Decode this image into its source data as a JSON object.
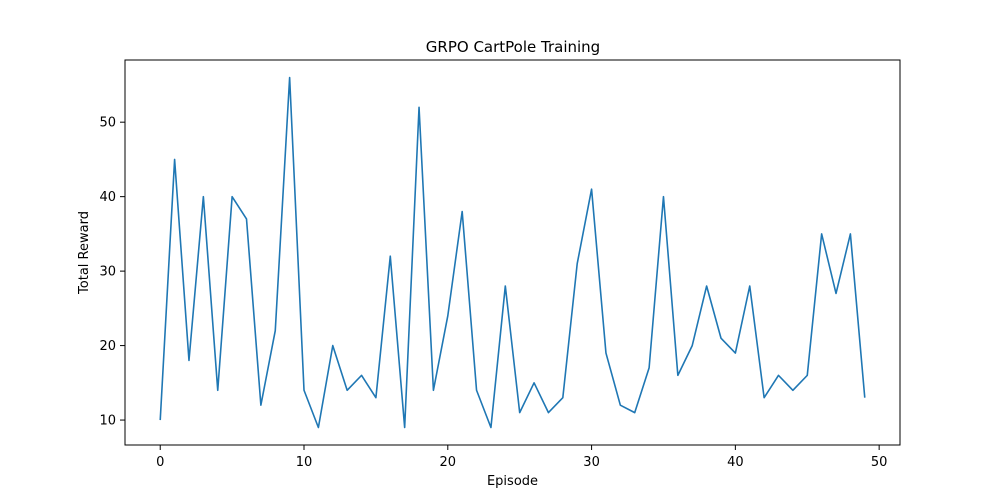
{
  "chart_data": {
    "type": "line",
    "title": "GRPO CartPole Training",
    "xlabel": "Episode",
    "ylabel": "Total Reward",
    "xlim": [
      -2.45,
      51.45
    ],
    "ylim": [
      6.65,
      58.35
    ],
    "xticks": [
      0,
      10,
      20,
      30,
      40,
      50
    ],
    "yticks": [
      10,
      20,
      30,
      40,
      50
    ],
    "grid": false,
    "line_color": "#1f77b4",
    "x": [
      0,
      1,
      2,
      3,
      4,
      5,
      6,
      7,
      8,
      9,
      10,
      11,
      12,
      13,
      14,
      15,
      16,
      17,
      18,
      19,
      20,
      21,
      22,
      23,
      24,
      25,
      26,
      27,
      28,
      29,
      30,
      31,
      32,
      33,
      34,
      35,
      36,
      37,
      38,
      39,
      40,
      41,
      42,
      43,
      44,
      45,
      46,
      47,
      48,
      49
    ],
    "values": [
      10,
      45,
      18,
      40,
      14,
      40,
      37,
      12,
      22,
      56,
      14,
      9,
      20,
      14,
      16,
      13,
      32,
      9,
      52,
      14,
      24,
      38,
      14,
      9,
      28,
      11,
      15,
      11,
      13,
      31,
      41,
      19,
      12,
      11,
      17,
      40,
      16,
      20,
      28,
      21,
      19,
      28,
      13,
      16,
      14,
      16,
      35,
      27,
      35,
      13
    ]
  }
}
